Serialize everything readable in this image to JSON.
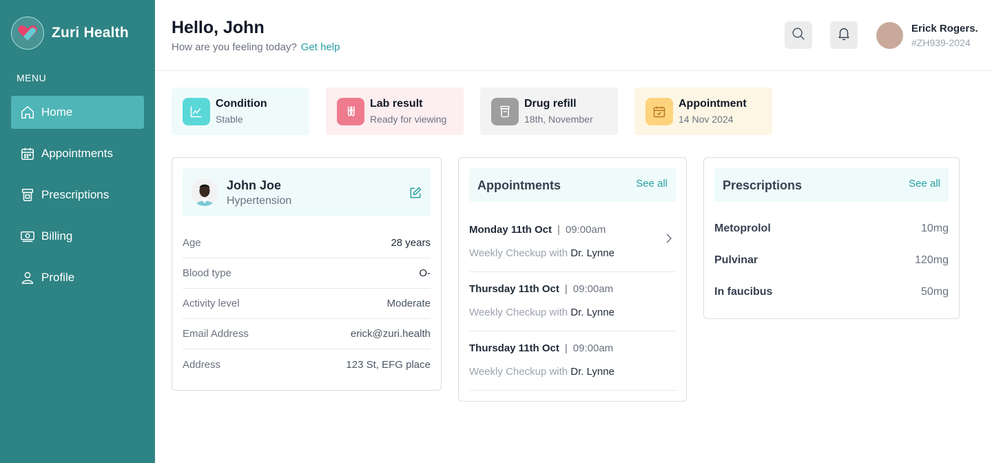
{
  "app": {
    "name": "Zuri Health"
  },
  "sidebar": {
    "menu_label": "MENU",
    "items": [
      {
        "label": "Home",
        "icon": "home-icon",
        "active": true
      },
      {
        "label": "Appointments",
        "icon": "calendar-icon"
      },
      {
        "label": "Prescriptions",
        "icon": "pill-bottle-icon"
      },
      {
        "label": "Billing",
        "icon": "money-icon"
      },
      {
        "label": "Profile",
        "icon": "user-icon"
      }
    ]
  },
  "header": {
    "greeting": "Hello, John",
    "subtitle": "How are you feeling today?",
    "help_link": "Get help",
    "user_name": "Erick Rogers.",
    "user_id": "#ZH939-2024"
  },
  "stats": [
    {
      "title": "Condition",
      "subtitle": "Stable",
      "icon": "chart-icon",
      "bg": "#effbfb",
      "icon_bg": "#5ad8d8"
    },
    {
      "title": "Lab result",
      "subtitle": "Ready for viewing",
      "icon": "test-tube-icon",
      "bg": "#fdeef0",
      "icon_bg": "#ee7b8d"
    },
    {
      "title": "Drug refill",
      "subtitle": "18th, November",
      "icon": "pill-bottle-icon",
      "bg": "#f3f3f3",
      "icon_bg": "#9e9e9e"
    },
    {
      "title": "Appointment",
      "subtitle": "14 Nov 2024",
      "icon": "calendar-check-icon",
      "bg": "#fef6e4",
      "icon_bg": "#fdd37d"
    }
  ],
  "patient": {
    "name": "John Joe",
    "condition": "Hypertension",
    "rows": [
      {
        "label": "Age",
        "value": "28 years"
      },
      {
        "label": "Blood type",
        "value": "O-"
      },
      {
        "label": "Activity level",
        "value": "Moderate"
      },
      {
        "label": "Email Address",
        "value": "erick@zuri.health"
      },
      {
        "label": "Address",
        "value": "123 St, EFG place"
      }
    ]
  },
  "appointments": {
    "title": "Appointments",
    "see_all": "See all",
    "items": [
      {
        "day": "Monday 11th Oct",
        "sep": "|",
        "time": "09:00am",
        "desc": "Weekly Checkup with",
        "doctor": "Dr. Lynne"
      },
      {
        "day": "Thursday 11th Oct",
        "sep": "|",
        "time": "09:00am",
        "desc": "Weekly Checkup with",
        "doctor": "Dr. Lynne"
      },
      {
        "day": "Thursday 11th Oct",
        "sep": "|",
        "time": "09:00am",
        "desc": "Weekly Checkup with",
        "doctor": "Dr. Lynne"
      }
    ]
  },
  "prescriptions": {
    "title": "Prescriptions",
    "see_all": "See all",
    "items": [
      {
        "name": "Metoprolol",
        "dose": "10mg"
      },
      {
        "name": "Pulvinar",
        "dose": "120mg"
      },
      {
        "name": "In faucibus",
        "dose": "50mg"
      }
    ]
  },
  "colors": {
    "sidebar": "#2e8384",
    "active_nav": "#4fb5b7",
    "accent": "#2a9ea1"
  }
}
